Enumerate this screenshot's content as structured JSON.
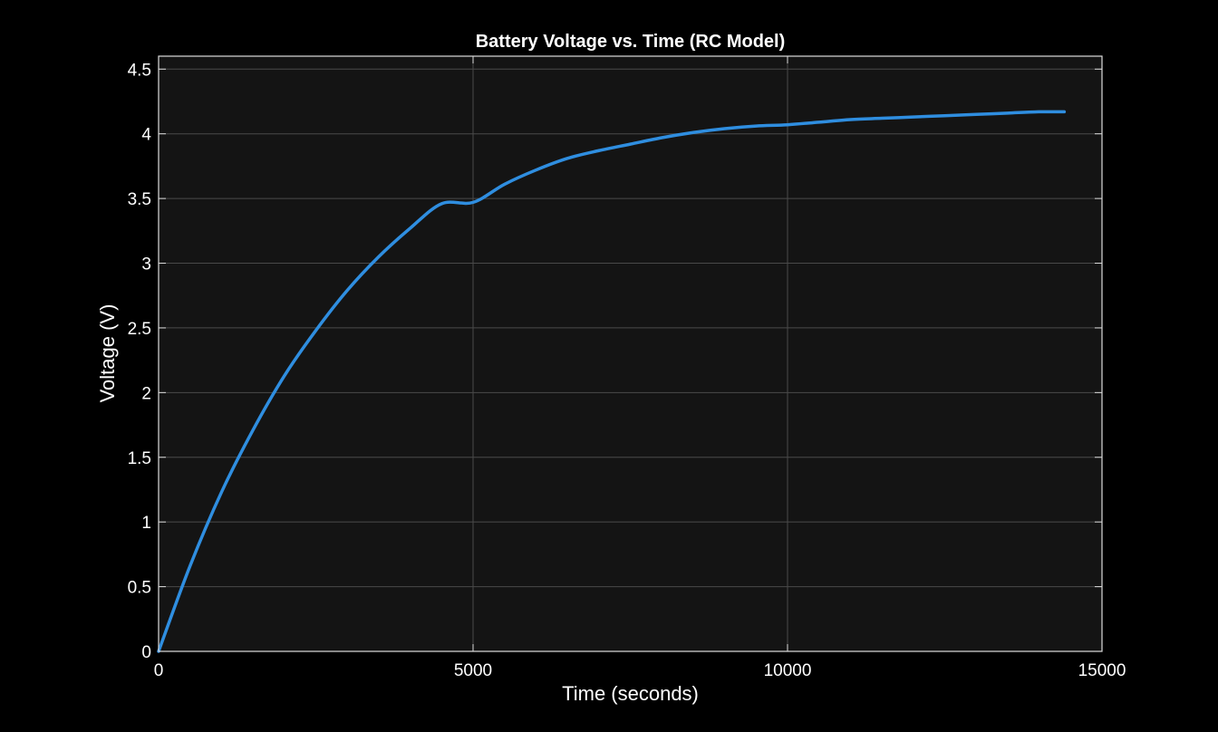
{
  "chart_data": {
    "type": "line",
    "title": "Battery Voltage vs. Time (RC Model)",
    "xlabel": "Time (seconds)",
    "ylabel": "Voltage (V)",
    "xlim": [
      0,
      15000
    ],
    "ylim": [
      0,
      4.6
    ],
    "x_ticks": [
      0,
      5000,
      10000,
      15000
    ],
    "x_tick_labels": [
      "0",
      "5000",
      "10000",
      "15000"
    ],
    "y_ticks": [
      0,
      0.5,
      1,
      1.5,
      2,
      2.5,
      3,
      3.5,
      4,
      4.5
    ],
    "y_tick_labels": [
      "0",
      "0.5",
      "1",
      "1.5",
      "2",
      "2.5",
      "3",
      "3.5",
      "4",
      "4.5"
    ],
    "grid": true,
    "background_color": "#000000",
    "plot_background_color": "#141414",
    "series": [
      {
        "color": "#2f8ee0",
        "x": [
          0,
          500,
          1000,
          1500,
          2000,
          2500,
          3000,
          3500,
          4000,
          4500,
          5000,
          5500,
          6000,
          6500,
          7000,
          7500,
          8000,
          8500,
          9000,
          9500,
          10000,
          10500,
          11000,
          11500,
          12000,
          12500,
          13000,
          13500,
          14000,
          14400
        ],
        "values": [
          0,
          0.66,
          1.23,
          1.71,
          2.13,
          2.48,
          2.79,
          3.05,
          3.27,
          3.46,
          3.47,
          3.61,
          3.72,
          3.81,
          3.87,
          3.92,
          3.97,
          4.01,
          4.04,
          4.06,
          4.07,
          4.09,
          4.11,
          4.12,
          4.13,
          4.14,
          4.15,
          4.16,
          4.17,
          4.17
        ]
      }
    ]
  }
}
